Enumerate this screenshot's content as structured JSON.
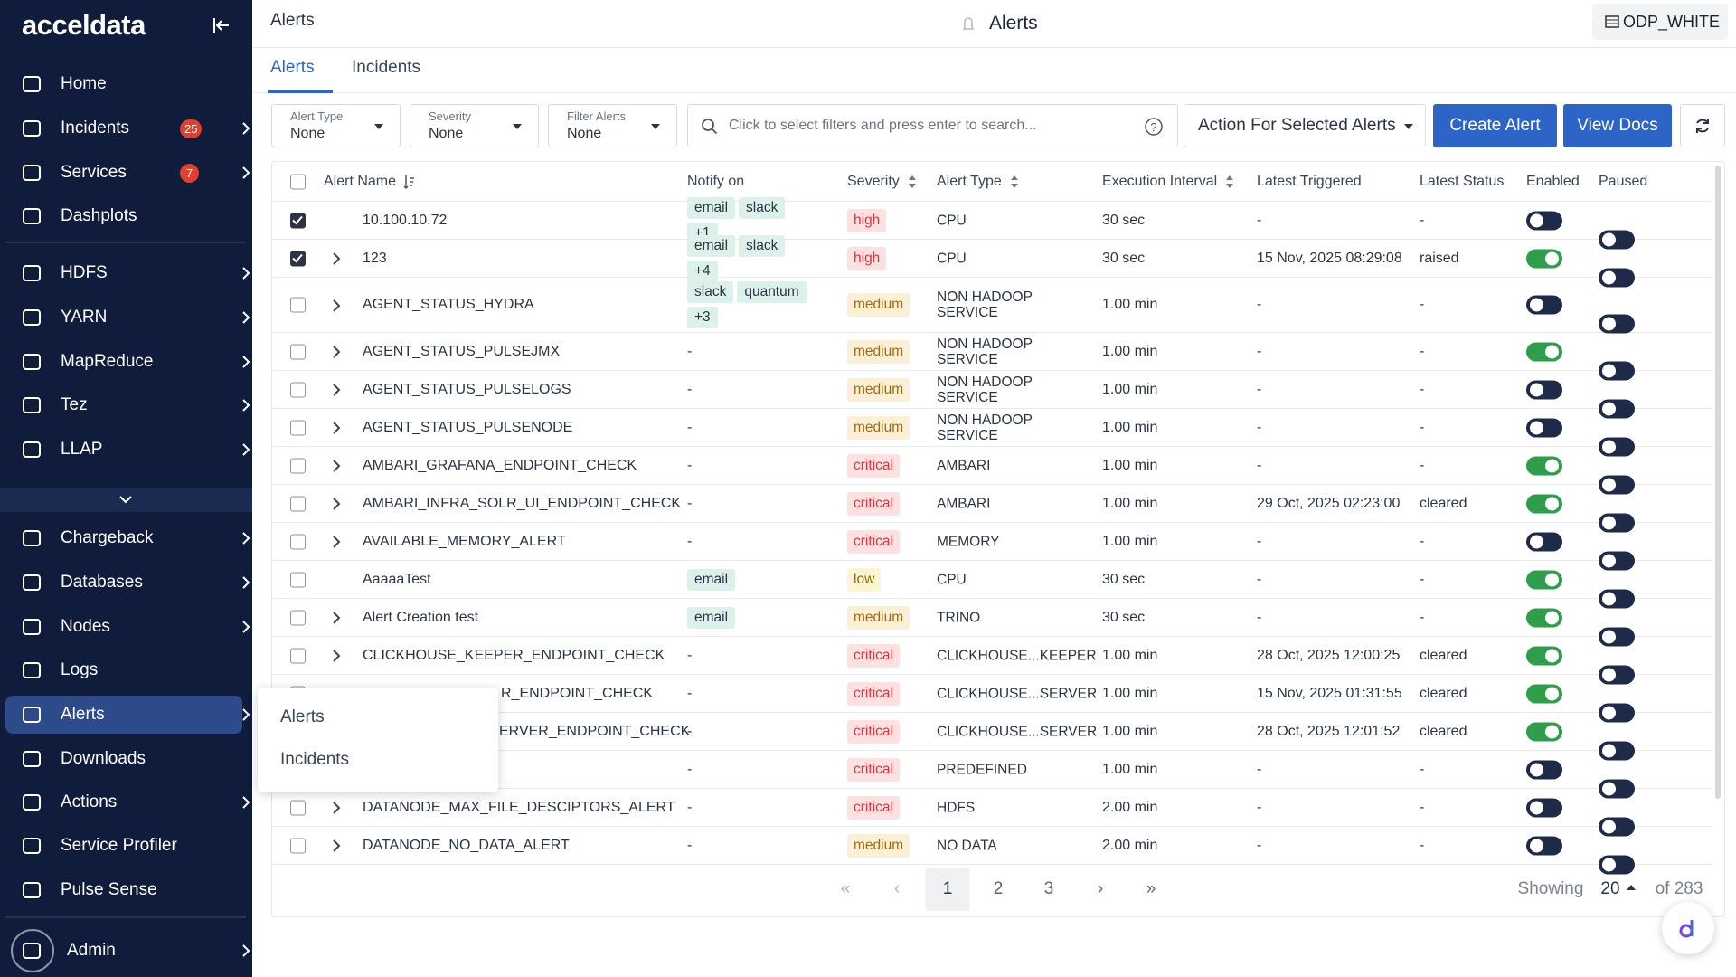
{
  "sidebar": {
    "logo": "acceldata",
    "items": [
      {
        "label": "Home",
        "has_submenu": false
      },
      {
        "label": "Incidents",
        "badge": "25",
        "has_submenu": true
      },
      {
        "label": "Services",
        "badge": "7",
        "has_submenu": true
      },
      {
        "label": "Dashplots",
        "has_submenu": false
      },
      {
        "label": "HDFS",
        "has_submenu": true
      },
      {
        "label": "YARN",
        "has_submenu": true
      },
      {
        "label": "MapReduce",
        "has_submenu": true
      },
      {
        "label": "Tez",
        "has_submenu": true
      },
      {
        "label": "LLAP",
        "has_submenu": true
      },
      {
        "label": "Chargeback",
        "has_submenu": true
      },
      {
        "label": "Databases",
        "has_submenu": true
      },
      {
        "label": "Nodes",
        "has_submenu": true
      },
      {
        "label": "Logs",
        "has_submenu": false
      },
      {
        "label": "Alerts",
        "has_submenu": true,
        "active": true
      },
      {
        "label": "Downloads",
        "has_submenu": false
      },
      {
        "label": "Actions",
        "has_submenu": true
      },
      {
        "label": "Service Profiler",
        "has_submenu": false
      },
      {
        "label": "Pulse Sense",
        "has_submenu": false
      },
      {
        "label": "Admin",
        "has_submenu": true
      }
    ]
  },
  "header": {
    "breadcrumb": "Alerts",
    "title": "Alerts",
    "workspace": "ODP_WHITE"
  },
  "tabs": [
    {
      "label": "Alerts",
      "active": true
    },
    {
      "label": "Incidents",
      "active": false
    }
  ],
  "filters": [
    {
      "label": "Alert Type",
      "value": "None"
    },
    {
      "label": "Severity",
      "value": "None"
    },
    {
      "label": "Filter Alerts",
      "value": "None"
    }
  ],
  "search_placeholder": "Click to select filters and press enter to search...",
  "buttons": {
    "action": "Action For Selected Alerts",
    "create": "Create Alert",
    "docs": "View Docs"
  },
  "table": {
    "columns": [
      {
        "label": "Alert Name",
        "sortable": true
      },
      {
        "label": "Notify on",
        "sortable": false
      },
      {
        "label": "Severity",
        "sortable": true
      },
      {
        "label": "Alert Type",
        "sortable": true
      },
      {
        "label": "Execution Interval",
        "sortable": true
      },
      {
        "label": "Latest Triggered",
        "sortable": false
      },
      {
        "label": "Latest Status",
        "sortable": false
      },
      {
        "label": "Enabled",
        "sortable": false
      },
      {
        "label": "Paused",
        "sortable": false
      }
    ],
    "rows": [
      {
        "checked": true,
        "expandable": false,
        "name": "10.100.10.72",
        "notify": [
          "email",
          "slack",
          "+1"
        ],
        "severity": "high",
        "type": "CPU",
        "interval": "30 sec",
        "triggered": "-",
        "status": "-",
        "enabled": false,
        "paused": false
      },
      {
        "checked": true,
        "expandable": true,
        "name": "123",
        "notify": [
          "email",
          "slack",
          "+4"
        ],
        "severity": "high",
        "type": "CPU",
        "interval": "30 sec",
        "triggered": "15 Nov, 2025 08:29:08",
        "status": "raised",
        "enabled": true,
        "paused": false
      },
      {
        "checked": false,
        "expandable": true,
        "name": "AGENT_STATUS_HYDRA",
        "notify": [
          "slack",
          "quantum",
          "+3"
        ],
        "severity": "medium",
        "type": "NON HADOOP SERVICE",
        "interval": "1.00 min",
        "triggered": "-",
        "status": "-",
        "enabled": false,
        "paused": false
      },
      {
        "checked": false,
        "expandable": true,
        "name": "AGENT_STATUS_PULSEJMX",
        "notify": "-",
        "severity": "medium",
        "type": "NON HADOOP SERVICE",
        "interval": "1.00 min",
        "triggered": "-",
        "status": "-",
        "enabled": true,
        "paused": false
      },
      {
        "checked": false,
        "expandable": true,
        "name": "AGENT_STATUS_PULSELOGS",
        "notify": "-",
        "severity": "medium",
        "type": "NON HADOOP SERVICE",
        "interval": "1.00 min",
        "triggered": "-",
        "status": "-",
        "enabled": false,
        "paused": false
      },
      {
        "checked": false,
        "expandable": true,
        "name": "AGENT_STATUS_PULSENODE",
        "notify": "-",
        "severity": "medium",
        "type": "NON HADOOP SERVICE",
        "interval": "1.00 min",
        "triggered": "-",
        "status": "-",
        "enabled": false,
        "paused": false
      },
      {
        "checked": false,
        "expandable": true,
        "name": "AMBARI_GRAFANA_ENDPOINT_CHECK",
        "notify": "-",
        "severity": "critical",
        "type": "AMBARI",
        "interval": "1.00 min",
        "triggered": "-",
        "status": "-",
        "enabled": true,
        "paused": false
      },
      {
        "checked": false,
        "expandable": true,
        "name": "AMBARI_INFRA_SOLR_UI_ENDPOINT_CHECK",
        "notify": "-",
        "severity": "critical",
        "type": "AMBARI",
        "interval": "1.00 min",
        "triggered": "29 Oct, 2025 02:23:00",
        "status": "cleared",
        "enabled": true,
        "paused": false
      },
      {
        "checked": false,
        "expandable": true,
        "name": "AVAILABLE_MEMORY_ALERT",
        "notify": "-",
        "severity": "critical",
        "type": "MEMORY",
        "interval": "1.00 min",
        "triggered": "-",
        "status": "-",
        "enabled": false,
        "paused": false
      },
      {
        "checked": false,
        "expandable": false,
        "name": "AaaaaTest",
        "notify": [
          "email"
        ],
        "severity": "low",
        "type": "CPU",
        "interval": "30 sec",
        "triggered": "-",
        "status": "-",
        "enabled": true,
        "paused": false
      },
      {
        "checked": false,
        "expandable": true,
        "name": "Alert Creation test",
        "notify": [
          "email"
        ],
        "severity": "medium",
        "type": "TRINO",
        "interval": "30 sec",
        "triggered": "-",
        "status": "-",
        "enabled": true,
        "paused": false
      },
      {
        "checked": false,
        "expandable": true,
        "name": "CLICKHOUSE_KEEPER_ENDPOINT_CHECK",
        "notify": "-",
        "severity": "critical",
        "type": "CLICKHOUSE...KEEPER",
        "interval": "1.00 min",
        "triggered": "28 Oct, 2025 12:00:25",
        "status": "cleared",
        "enabled": true,
        "paused": false
      },
      {
        "checked": false,
        "expandable": true,
        "name": "R_ENDPOINT_CHECK",
        "notify": "-",
        "severity": "critical",
        "type": "CLICKHOUSE...SERVER",
        "interval": "1.00 min",
        "triggered": "15 Nov, 2025 01:31:55",
        "status": "cleared",
        "enabled": true,
        "paused": false
      },
      {
        "checked": false,
        "expandable": true,
        "name": "ERVER_ENDPOINT_CHECK",
        "notify": "-",
        "severity": "critical",
        "type": "CLICKHOUSE...SERVER",
        "interval": "1.00 min",
        "triggered": "28 Oct, 2025 12:01:52",
        "status": "cleared",
        "enabled": true,
        "paused": false
      },
      {
        "checked": false,
        "expandable": true,
        "name": null,
        "notify": "-",
        "severity": "critical",
        "type": "PREDEFINED",
        "interval": "1.00 min",
        "triggered": "-",
        "status": "-",
        "enabled": false,
        "paused": false
      },
      {
        "checked": false,
        "expandable": true,
        "name": "DATANODE_MAX_FILE_DESCIPTORS_ALERT",
        "notify": "-",
        "severity": "critical",
        "type": "HDFS",
        "interval": "2.00 min",
        "triggered": "-",
        "status": "-",
        "enabled": false,
        "paused": false
      },
      {
        "checked": false,
        "expandable": true,
        "name": "DATANODE_NO_DATA_ALERT",
        "notify": "-",
        "severity": "medium",
        "type": "NO DATA",
        "interval": "2.00 min",
        "triggered": "-",
        "status": "-",
        "enabled": false,
        "paused": false
      }
    ]
  },
  "pagination": {
    "first": "«",
    "prev": "‹",
    "pages": [
      "1",
      "2",
      "3"
    ],
    "current": 0,
    "next": "›",
    "last": "»",
    "showing": "Showing",
    "page_size": "20",
    "total": "of 283"
  },
  "popup_menu": [
    "Alerts",
    "Incidents"
  ]
}
